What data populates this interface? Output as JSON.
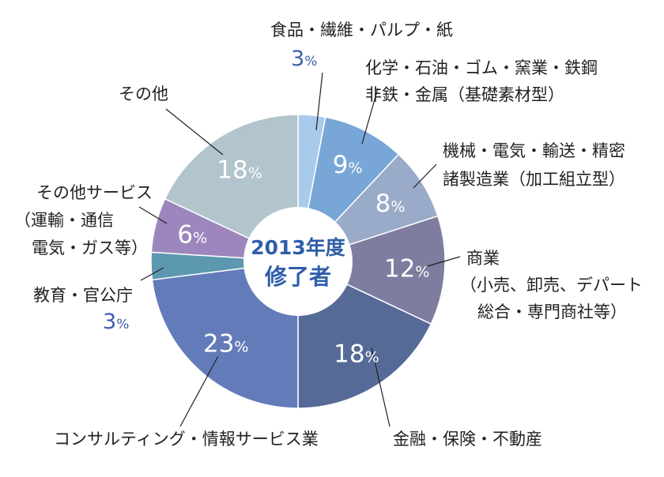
{
  "chart_data": {
    "type": "pie",
    "variant": "donut",
    "center_label": [
      "2013年度",
      "修了者"
    ],
    "start": "12 o'clock, clockwise",
    "unit": "%",
    "slices": [
      {
        "label": "食品・繊維・パルプ・紙",
        "value": 3,
        "color": "#a9cbeb"
      },
      {
        "label": "化学・石油・ゴム・窯業・鉄鋼 非鉄・金属（基礎素材型）",
        "value": 9,
        "color": "#78a6d6"
      },
      {
        "label": "機械・電気・輸送・精密 諸製造業（加工組立型）",
        "value": 8,
        "color": "#9aabc9"
      },
      {
        "label": "商業（小売、卸売、デパート 総合・専門商社等）",
        "value": 12,
        "color": "#7e7d9f"
      },
      {
        "label": "金融・保険・不動産",
        "value": 18,
        "color": "#566a98"
      },
      {
        "label": "コンサルティング・情報サービス業",
        "value": 23,
        "color": "#637bb9"
      },
      {
        "label": "教育・官公庁",
        "value": 3,
        "color": "#5c98b0"
      },
      {
        "label": "その他サービス（運輸・通信 電気・ガス等）",
        "value": 6,
        "color": "#9c86bd"
      },
      {
        "label": "その他",
        "value": 18,
        "color": "#b2c4cc"
      }
    ]
  },
  "labels": {
    "food": [
      "食品・繊維・パルプ・紙"
    ],
    "chem": [
      "化学・石油・ゴム・窯業・鉄鋼",
      "非鉄・金属（基礎素材型）"
    ],
    "mach": [
      "機械・電気・輸送・精密",
      "諸製造業（加工組立型）"
    ],
    "comm": [
      "商業",
      "（小売、卸売、デパート",
      "総合・専門商社等）"
    ],
    "fin": [
      "金融・保険・不動産"
    ],
    "cons": [
      "コンサルティング・情報サービス業"
    ],
    "edu": [
      "教育・官公庁"
    ],
    "osvc": [
      "その他サービス",
      "（運輸・通信",
      "電気・ガス等）"
    ],
    "other": [
      "その他"
    ]
  },
  "outside_values": {
    "food": "3",
    "edu": "3",
    "pct": "%"
  }
}
